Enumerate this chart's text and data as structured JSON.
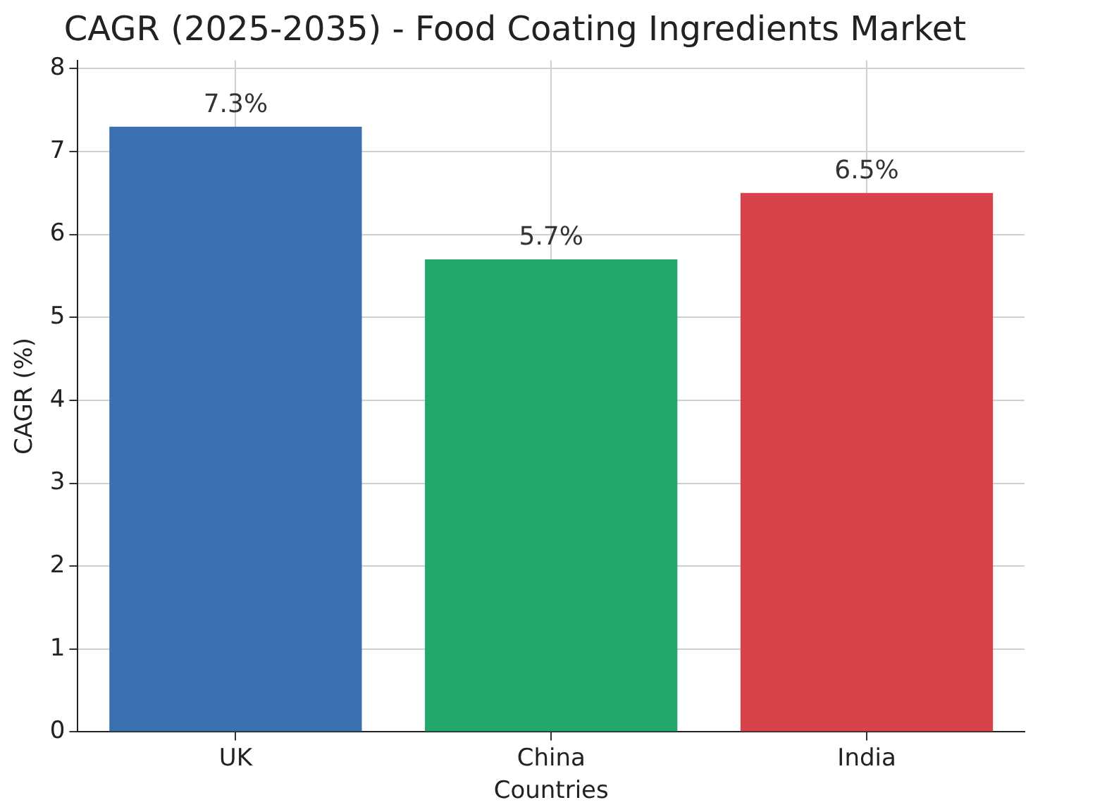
{
  "chart_data": {
    "type": "bar",
    "title": "CAGR (2025-2035) - Food Coating Ingredients Market",
    "xlabel": "Countries",
    "ylabel": "CAGR (%)",
    "categories": [
      "UK",
      "China",
      "India"
    ],
    "values": [
      7.3,
      5.7,
      6.5
    ],
    "colors": [
      "#3a70b0",
      "#22a86a",
      "#d8434b"
    ],
    "value_labels": [
      "7.3%",
      "5.7%",
      "6.5%"
    ],
    "ylim": [
      0,
      8.1
    ],
    "yticks": [
      0,
      1,
      2,
      3,
      4,
      5,
      6,
      7,
      8
    ],
    "grid": true,
    "legend": false
  }
}
